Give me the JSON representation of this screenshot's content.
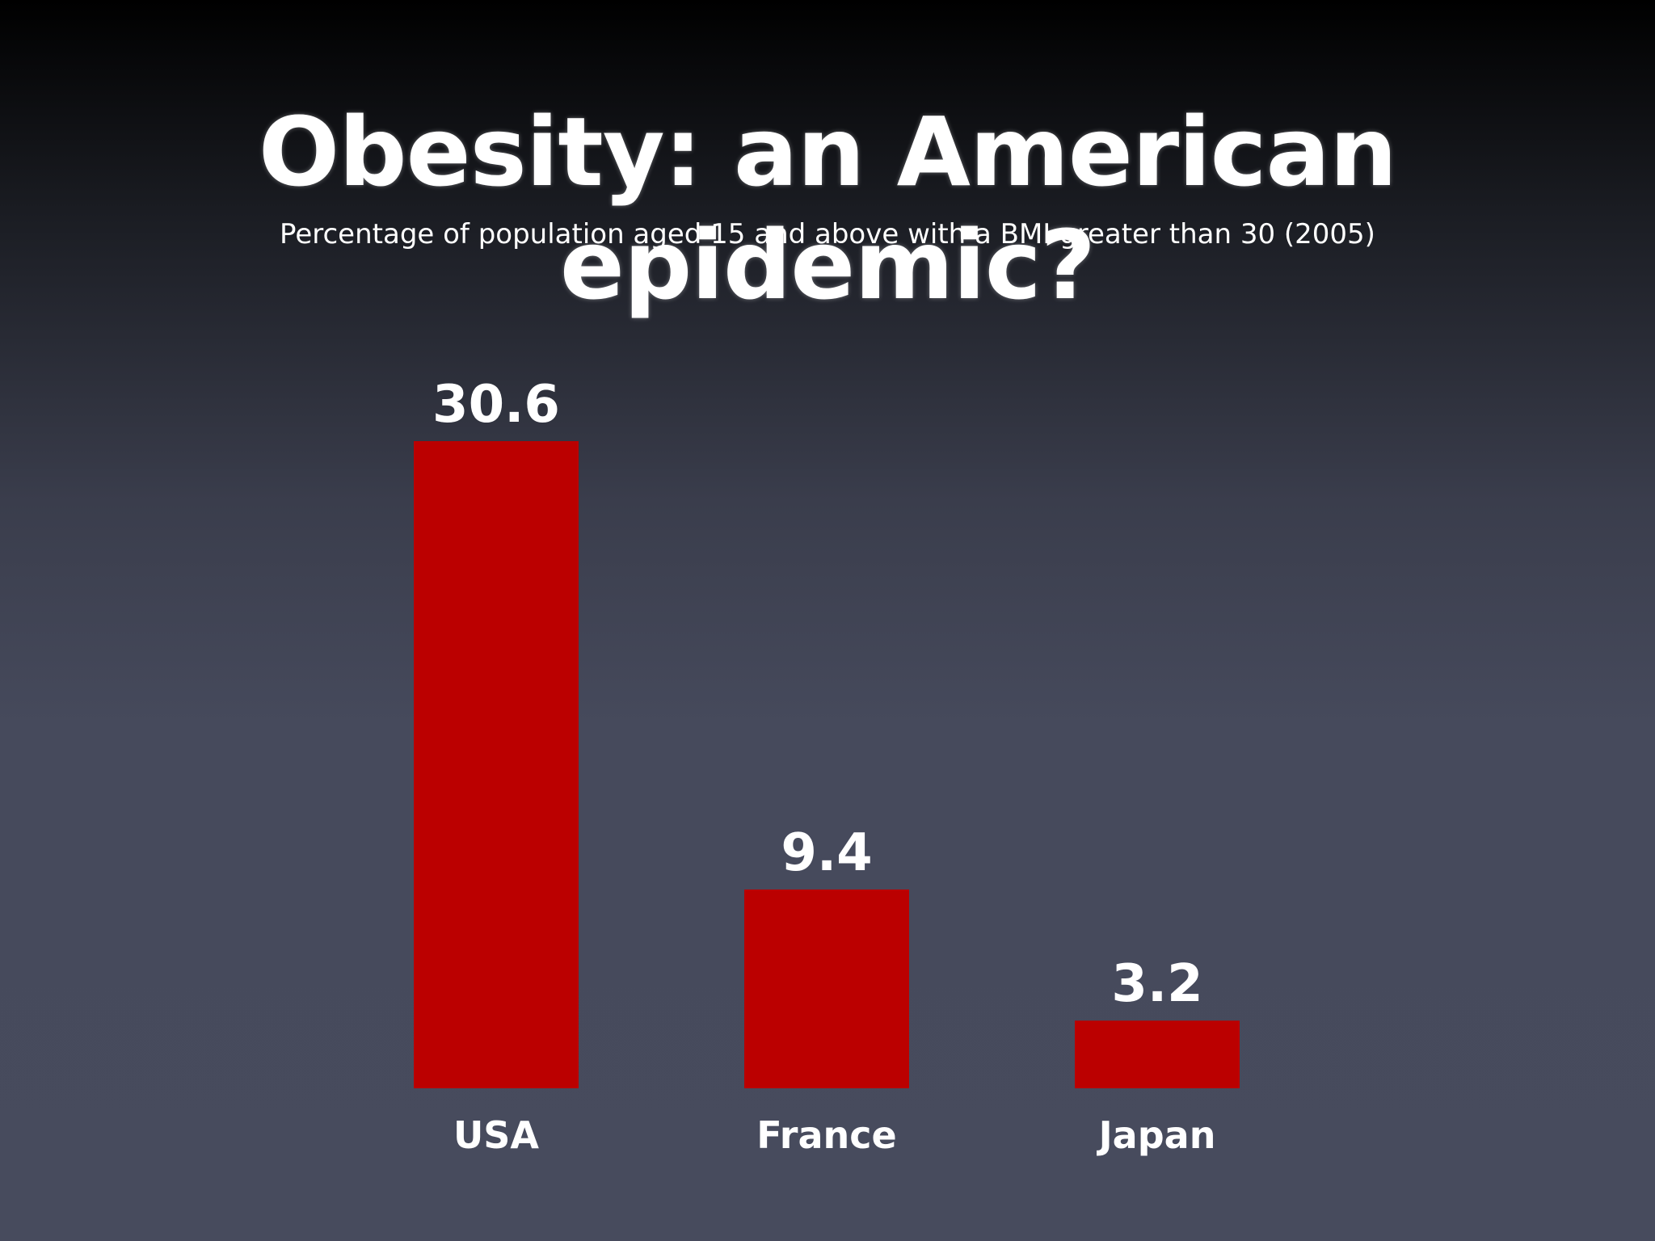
{
  "title": "Obesity: an American epidemic?",
  "subtitle": "Percentage of population aged 15 and above with a BMI greater than 30 (2005)",
  "chart_data": {
    "type": "bar",
    "title": "Obesity: an American epidemic?",
    "subtitle": "Percentage of population aged 15 and above with a BMI greater than 30 (2005)",
    "categories": [
      "USA",
      "France",
      "Japan"
    ],
    "values": [
      30.6,
      9.4,
      3.2
    ],
    "value_labels": [
      "30.6",
      "9.4",
      "3.2"
    ],
    "xlabel": "",
    "ylabel": "",
    "ylim": [
      0,
      30.6
    ],
    "grid": false,
    "legend": "none",
    "bar_color": "#bb0000"
  },
  "colors": {
    "bar": "#bb0000",
    "text": "#ffffff"
  }
}
